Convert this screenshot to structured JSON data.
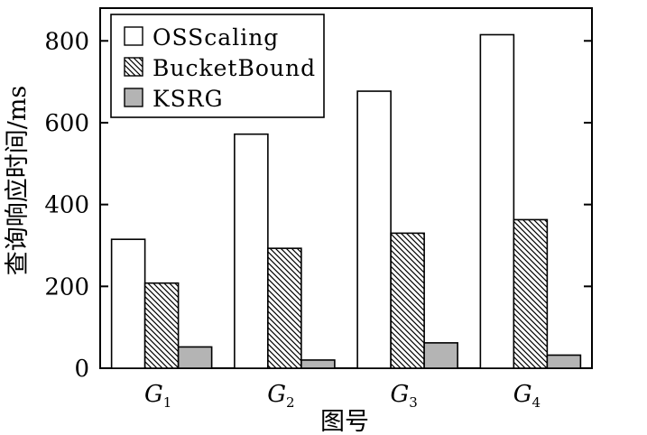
{
  "chart_data": {
    "type": "bar",
    "categories": [
      "G1",
      "G2",
      "G3",
      "G4"
    ],
    "category_labels": [
      {
        "main": "G",
        "sub": "1"
      },
      {
        "main": "G",
        "sub": "2"
      },
      {
        "main": "G",
        "sub": "3"
      },
      {
        "main": "G",
        "sub": "4"
      }
    ],
    "series": [
      {
        "name": "OSScaling",
        "values": [
          315,
          572,
          677,
          815
        ],
        "fill": "white"
      },
      {
        "name": "BucketBound",
        "values": [
          208,
          293,
          330,
          363
        ],
        "fill": "hatch"
      },
      {
        "name": "KSRG",
        "values": [
          52,
          20,
          62,
          32
        ],
        "fill": "#b4b4b4"
      }
    ],
    "xlabel": "图号",
    "ylabel": "查询响应时间/ms",
    "ylim": [
      0,
      880
    ],
    "yticks": [
      0,
      200,
      400,
      600,
      800
    ],
    "grid": false,
    "legend_position": "top-left"
  }
}
